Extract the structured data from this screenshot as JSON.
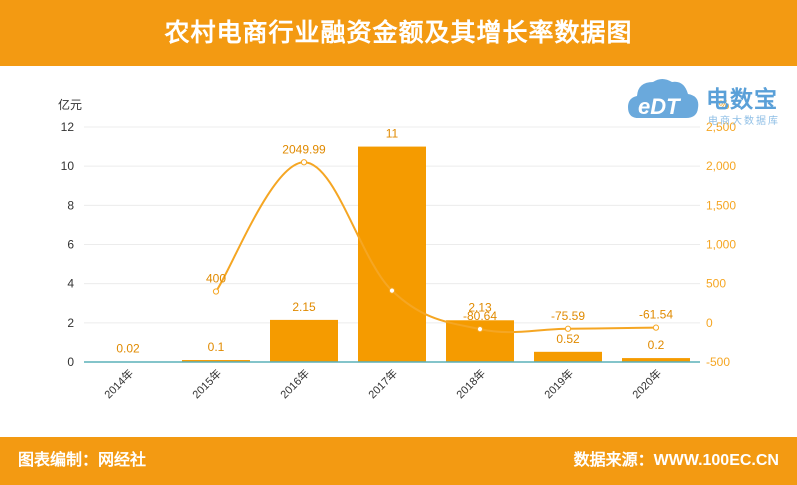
{
  "header": {
    "title": "农村电商行业融资金额及其增长率数据图"
  },
  "footer": {
    "credit": "图表编制：网经社",
    "source": "数据来源：WWW.100EC.CN"
  },
  "logo": {
    "name": "电数宝",
    "badge": "eDT",
    "subtitle": "电商大数据库"
  },
  "colors": {
    "accent": "#f39a12",
    "bar": "#f59b00",
    "line": "#f5a623",
    "logo_blue": "#5aa0d8"
  },
  "chart_data": {
    "type": "bar",
    "categories": [
      "2014年",
      "2015年",
      "2016年",
      "2017年",
      "2018年",
      "2019年",
      "2020年"
    ],
    "series": [
      {
        "axis": "left",
        "type": "bar",
        "values": [
          0.02,
          0.1,
          2.15,
          11,
          2.13,
          0.52,
          0.2
        ],
        "labels": [
          "0.02",
          "0.1",
          "2.15",
          "11",
          "2.13",
          "0.52",
          "0.2"
        ]
      },
      {
        "axis": "right",
        "type": "line",
        "values": [
          null,
          400,
          2049.99,
          411.63,
          -80.64,
          -75.59,
          -61.54
        ],
        "labels": [
          "",
          "400",
          "2049.99",
          "",
          "-80.64",
          "-75.59",
          "-61.54"
        ]
      }
    ],
    "ylabel": "亿元",
    "y2label": "%",
    "ylim": [
      0,
      12
    ],
    "y2lim": [
      -500,
      2500
    ],
    "yticks": [
      "0",
      "2",
      "4",
      "6",
      "8",
      "10",
      "12"
    ],
    "y2ticks": [
      "-500",
      "0",
      "500",
      "1,000",
      "1,500",
      "2,000",
      "2,500"
    ],
    "grid": true
  }
}
